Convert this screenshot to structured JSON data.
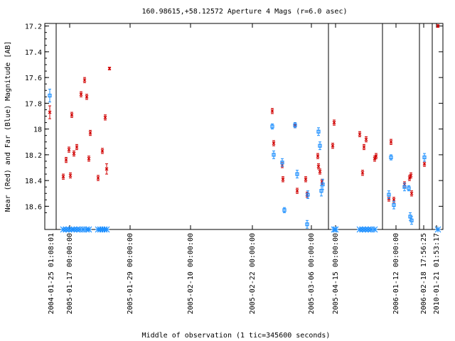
{
  "chart_data": {
    "type": "scatter",
    "title": "160.98615,+58.12572   Aperture 4 Mags (r=6.0 asec)",
    "xlabel": "Middle of observation (1 tic=345600 seconds)",
    "ylabel": "Near (Red) and Far (Blue) Magnitude [AB]",
    "ylim": [
      18.78,
      17.18
    ],
    "y_ticks": [
      17.2,
      17.4,
      17.6,
      17.8,
      18,
      18.2,
      18.4,
      18.6
    ],
    "y_tick_labels": [
      "17.2",
      "17.4",
      "17.6",
      "17.8",
      "18",
      "18.2",
      "18.4",
      "18.6"
    ],
    "segments": [
      {
        "start_label": "2004-01-25 01:08:01",
        "tick_labels": [
          "2005-01-17 00:00:00",
          "2005-01-29 00:00:00",
          "2005-02-10 00:00:00",
          "2005-02-22 00:00:00",
          "2005-03-06 00:00:00"
        ]
      },
      {
        "start_label": "",
        "tick_labels": [
          "2005-04-15 00:00:00"
        ]
      },
      {
        "start_label": "",
        "tick_labels": [
          "2006-01-12 00:00:00"
        ]
      },
      {
        "start_label": "",
        "tick_labels": [
          "2006-02-18 17:56:25"
        ]
      },
      {
        "start_label": "",
        "tick_labels": [
          "2010-01-21 01:53:17"
        ]
      }
    ],
    "series": [
      {
        "name": "Near",
        "color": "#d00000",
        "marker": "x",
        "points": [
          [
            0,
            17.87,
            0.05
          ],
          [
            19,
            18.37,
            0.02
          ],
          [
            23,
            18.24,
            0.02
          ],
          [
            27,
            18.16,
            0.02
          ],
          [
            29,
            18.36,
            0.02
          ],
          [
            31,
            17.89,
            0.02
          ],
          [
            34,
            18.19,
            0.02
          ],
          [
            38,
            18.14,
            0.02
          ],
          [
            44,
            17.73,
            0.02
          ],
          [
            49,
            17.62,
            0.02
          ],
          [
            52,
            17.75,
            0.02
          ],
          [
            55,
            18.23,
            0.02
          ],
          [
            57,
            18.03,
            0.02
          ],
          [
            68,
            18.38,
            0.02
          ],
          [
            74,
            18.17,
            0.02
          ],
          [
            78,
            17.91,
            0.02
          ],
          [
            80,
            18.31,
            0.04
          ],
          [
            84,
            17.53,
            0.01
          ],
          [
            313,
            17.86,
            0.02
          ],
          [
            315,
            18.11,
            0.02
          ],
          [
            327,
            18.28,
            0.02
          ],
          [
            328,
            18.39,
            0.02
          ],
          [
            345,
            17.97,
            0.02
          ],
          [
            348,
            18.48,
            0.02
          ],
          [
            360,
            18.39,
            0.02
          ],
          [
            362,
            18.51,
            0.02
          ],
          [
            377,
            18.21,
            0.02
          ],
          [
            378,
            18.29,
            0.02
          ],
          [
            380,
            18.33,
            0.02
          ],
          [
            383,
            18.41,
            0.02
          ],
          [
            398,
            18.13,
            0.02
          ],
          [
            400,
            17.95,
            0.02
          ],
          [
            436,
            18.04,
            0.02
          ],
          [
            440,
            18.34,
            0.02
          ],
          [
            442,
            18.14,
            0.02
          ],
          [
            445,
            18.08,
            0.02
          ],
          [
            457,
            18.23,
            0.02
          ],
          [
            459,
            18.21,
            0.02
          ],
          [
            477,
            18.54,
            0.02
          ],
          [
            480,
            18.1,
            0.02
          ],
          [
            484,
            18.55,
            0.02
          ],
          [
            499,
            18.43,
            0.02
          ],
          [
            506,
            18.38,
            0.02
          ],
          [
            508,
            18.36,
            0.02
          ],
          [
            509,
            18.5,
            0.02
          ],
          [
            527,
            18.27,
            0.02
          ],
          [
            546,
            17.2,
            0.01
          ]
        ]
      },
      {
        "name": "Far",
        "color": "#1e90ff",
        "marker": "square",
        "points": [
          [
            0,
            17.74,
            0.05
          ],
          [
            313,
            17.98,
            0.02
          ],
          [
            315,
            18.2,
            0.03
          ],
          [
            327,
            18.26,
            0.03
          ],
          [
            330,
            18.63,
            0.02
          ],
          [
            345,
            17.97,
            0.02
          ],
          [
            348,
            18.35,
            0.03
          ],
          [
            362,
            18.74,
            0.03
          ],
          [
            363,
            18.51,
            0.03
          ],
          [
            378,
            18.02,
            0.03
          ],
          [
            380,
            18.13,
            0.03
          ],
          [
            382,
            18.48,
            0.04
          ],
          [
            384,
            18.43,
            0.04
          ],
          [
            477,
            18.51,
            0.03
          ],
          [
            480,
            18.22,
            0.02
          ],
          [
            484,
            18.59,
            0.03
          ],
          [
            499,
            18.45,
            0.03
          ],
          [
            505,
            18.46,
            0.02
          ],
          [
            507,
            18.68,
            0.03
          ],
          [
            509,
            18.71,
            0.03
          ],
          [
            527,
            18.22,
            0.03
          ]
        ]
      }
    ],
    "upper_limit_markers": {
      "color": "#1e90ff",
      "marker": "asterisk",
      "y": 18.78,
      "x": [
        19,
        23,
        27,
        31,
        34,
        38,
        42,
        47,
        52,
        55,
        68,
        71,
        74,
        77,
        80,
        400,
        402,
        436,
        440,
        444,
        448,
        452,
        457,
        546
      ]
    }
  }
}
